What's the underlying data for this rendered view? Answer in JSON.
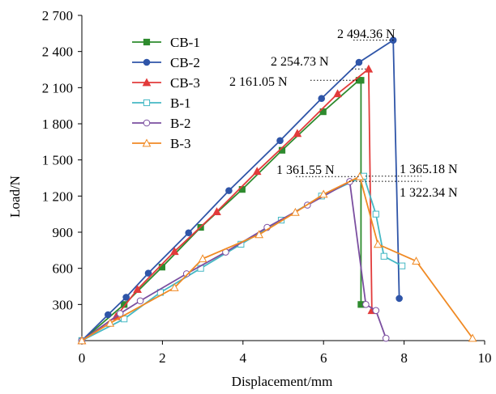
{
  "chart_data": {
    "type": "line",
    "xlabel": "Displacement/mm",
    "ylabel": "Load/N",
    "xlim": [
      0,
      10
    ],
    "ylim": [
      0,
      2700
    ],
    "x_ticks": [
      "0",
      "2",
      "4",
      "6",
      "8",
      "10"
    ],
    "y_ticks": [
      "300",
      "600",
      "900",
      "1 200",
      "1 500",
      "1 800",
      "2 100",
      "2 400",
      "2 700"
    ],
    "grid": false,
    "legend_position": "top-left",
    "series": [
      {
        "name": "CB-1",
        "color": "#2e8b2e",
        "marker": "square-filled",
        "x": [
          0,
          1.05,
          1.99,
          2.95,
          3.98,
          4.97,
          5.99,
          6.88,
          6.93,
          6.93
        ],
        "y": [
          0,
          300,
          610,
          940,
          1255,
          1580,
          1900,
          2161,
          2161,
          300
        ]
      },
      {
        "name": "CB-2",
        "color": "#2f55a8",
        "marker": "circle-filled",
        "x": [
          0,
          0.65,
          1.1,
          1.65,
          2.65,
          3.65,
          4.92,
          5.95,
          6.88,
          7.73,
          7.88
        ],
        "y": [
          0,
          215,
          360,
          560,
          895,
          1245,
          1660,
          2010,
          2310,
          2494,
          350
        ]
      },
      {
        "name": "CB-3",
        "color": "#e23b3b",
        "marker": "triangle-filled",
        "x": [
          0,
          0.85,
          1.38,
          2.3,
          3.35,
          4.35,
          5.35,
          6.35,
          7.12,
          7.2
        ],
        "y": [
          0,
          200,
          425,
          740,
          1070,
          1405,
          1720,
          2050,
          2255,
          250
        ]
      },
      {
        "name": "B-1",
        "color": "#44b8c4",
        "marker": "square-open",
        "x": [
          0,
          1.05,
          1.95,
          2.95,
          3.95,
          4.95,
          5.95,
          7.0,
          7.3,
          7.5,
          7.95
        ],
        "y": [
          0,
          180,
          400,
          600,
          800,
          1000,
          1200,
          1365,
          1050,
          700,
          620
        ]
      },
      {
        "name": "B-2",
        "color": "#7b4fa0",
        "marker": "circle-open",
        "x": [
          0,
          0.95,
          1.45,
          2.6,
          3.57,
          4.6,
          5.6,
          6.65,
          7.05,
          7.3,
          7.55
        ],
        "y": [
          0,
          225,
          330,
          555,
          735,
          940,
          1125,
          1320,
          300,
          250,
          20
        ]
      },
      {
        "name": "B-3",
        "color": "#f08a24",
        "marker": "triangle-open",
        "x": [
          0,
          0.7,
          2.3,
          3.0,
          4.4,
          5.3,
          6.0,
          6.9,
          7.35,
          8.3,
          9.7
        ],
        "y": [
          0,
          145,
          440,
          680,
          880,
          1065,
          1215,
          1362,
          800,
          660,
          20
        ]
      }
    ],
    "annotations": [
      {
        "text": "2 494.36 N",
        "x": 7.78,
        "y": 2494.36,
        "line_from_x": 6.0
      },
      {
        "text": "2 254.73 N",
        "x": 7.05,
        "y": 2254.73,
        "line_from_x": 5.5
      },
      {
        "text": "2 161.05 N",
        "x": 6.85,
        "y": 2161.05,
        "line_from_x": 5.5
      },
      {
        "text": "1 361.55 N",
        "x": 6.9,
        "y": 1361.55,
        "line_from_x": 8.4
      },
      {
        "text": "1 365.18 N",
        "x": 7.0,
        "y": 1365.18,
        "line_from_x": 8.3
      },
      {
        "text": "1 322.34 N",
        "x": 6.6,
        "y": 1322.34,
        "line_from_x": 8.3
      }
    ]
  }
}
